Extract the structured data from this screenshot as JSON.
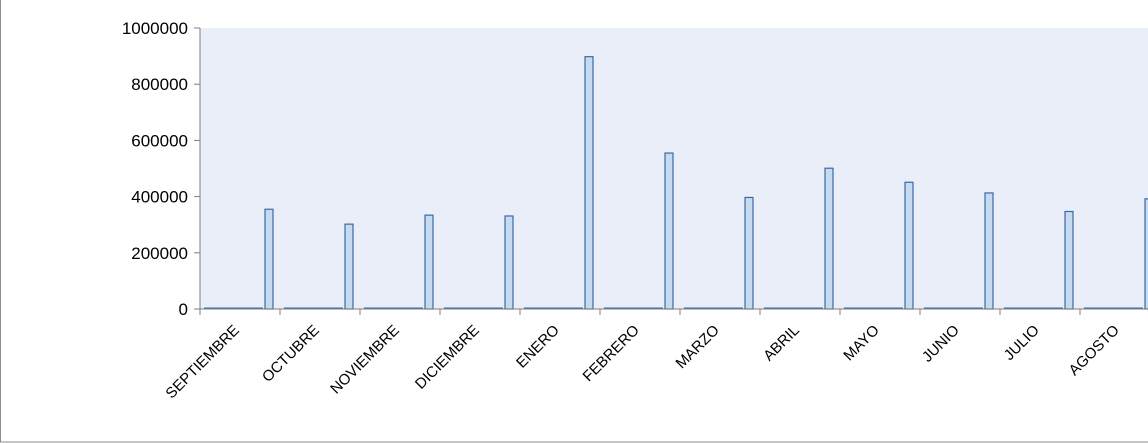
{
  "chart_data": {
    "type": "bar",
    "title": "",
    "xlabel": "",
    "ylabel": "",
    "ylim": [
      0,
      1000000
    ],
    "yticks": [
      "0",
      "200000",
      "400000",
      "600000",
      "800000",
      "1000000"
    ],
    "categories": [
      "SEPTIEMBRE",
      "OCTUBRE",
      "NOVIEMBRE",
      "DICIEMBRE",
      "ENERO",
      "FEBRERO",
      "MARZO",
      "ABRIL",
      "MAYO",
      "JUNIO",
      "JULIO",
      "AGOSTO"
    ],
    "values": [
      355000,
      302000,
      334000,
      331000,
      898000,
      555000,
      397000,
      501000,
      451000,
      413000,
      347000,
      392000
    ],
    "grid": false,
    "legend": "none",
    "colors": {
      "bar_fill": "#c5d9ef",
      "bar_stroke": "#3a6aa8",
      "plot_bg": "#e9eef8",
      "axis": "#7f7f7f",
      "border": "#8c8c8c"
    }
  }
}
